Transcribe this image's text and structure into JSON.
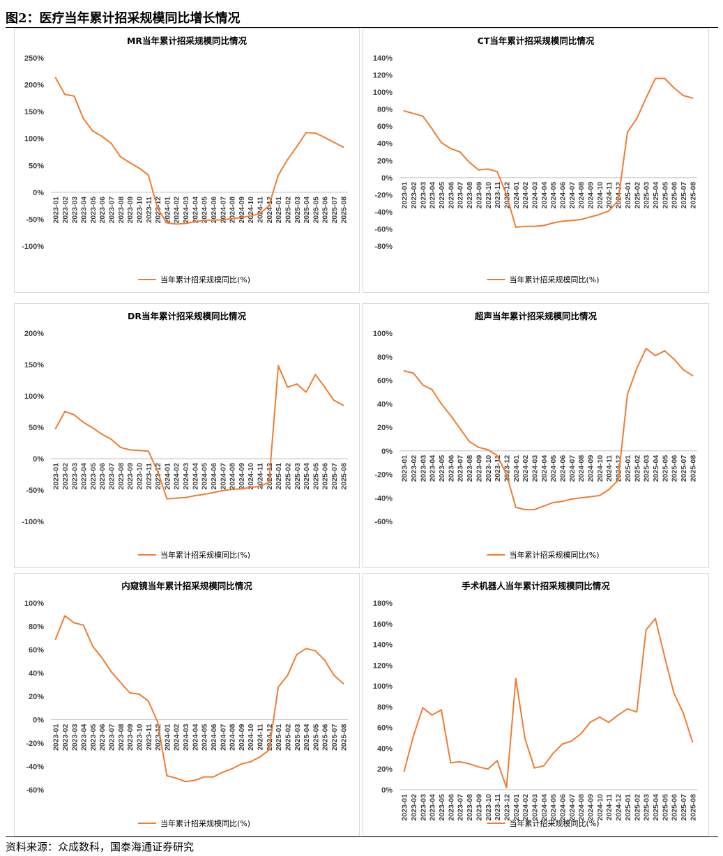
{
  "figure": {
    "title": "图2：医疗当年累计招采规模同比增长情况",
    "source": "资料来源：众成数科，国泰海通证券研究"
  },
  "colors": {
    "line": "#ED7D31",
    "axis_text": "#404040",
    "border": "#d9d9d9"
  },
  "chart_data": [
    {
      "type": "line",
      "title": "MR当年累计招采规模同比情况",
      "legend": "当年累计招采规模同比(%)",
      "legend_position": "bottom",
      "ylim": [
        -100,
        250
      ],
      "yticks": [
        -100,
        -50,
        0,
        50,
        100,
        150,
        200,
        250
      ],
      "ytick_labels": [
        "-100%",
        "-50%",
        "0%",
        "50%",
        "100%",
        "150%",
        "200%",
        "250%"
      ],
      "categories": [
        "2023-01",
        "2023-02",
        "2023-03",
        "2023-04",
        "2023-05",
        "2023-06",
        "2023-07",
        "2023-08",
        "2023-09",
        "2023-10",
        "2023-11",
        "2023-12",
        "2024-01",
        "2024-02",
        "2024-03",
        "2024-04",
        "2024-05",
        "2024-06",
        "2024-07",
        "2024-08",
        "2024-09",
        "2024-10",
        "2024-11",
        "2024-12",
        "2025-01",
        "2025-02",
        "2025-03",
        "2025-04",
        "2025-05",
        "2025-06",
        "2025-07",
        "2025-08"
      ],
      "tick_labels": [
        "2023-01",
        "2023-02",
        "2023-03",
        "2023-04",
        "2023-05",
        "2023-06",
        "2023-07",
        "2023-08",
        "2023-09",
        "2023-10",
        "2023-11",
        "2023-12",
        "2024-01",
        "2024-02",
        "2024-03",
        "2024-04",
        "2024-05",
        "2024-06",
        "2024-07",
        "2024-08",
        "2024-09",
        "2024-10",
        "2024-11",
        "2024-12",
        "2025-01",
        "2025-02",
        "2025-03",
        "2025-04",
        "2025-05",
        "2025-06",
        "2025-07",
        "2025-08"
      ],
      "values": [
        213,
        182,
        179,
        137,
        114,
        104,
        91,
        66,
        55,
        45,
        32,
        -30,
        -57,
        -59,
        -58,
        -55,
        -52,
        -52,
        -51,
        -49,
        -47,
        -44,
        -40,
        -25,
        32,
        61,
        85,
        111,
        110,
        102,
        93,
        84
      ]
    },
    {
      "type": "line",
      "title": "CT当年累计招采规模同比情况",
      "legend": "当年累计招采规模同比(%)",
      "legend_position": "bottom",
      "ylim": [
        -80,
        140
      ],
      "yticks": [
        -80,
        -60,
        -40,
        -20,
        0,
        20,
        40,
        60,
        80,
        100,
        120,
        140
      ],
      "ytick_labels": [
        "-80%",
        "-60%",
        "-40%",
        "-20%",
        "0%",
        "20%",
        "40%",
        "60%",
        "80%",
        "100%",
        "120%",
        "140%"
      ],
      "categories": [
        "2023-01",
        "2023-02",
        "2023-03",
        "2023-04",
        "2023-05",
        "2023-06",
        "2023-07",
        "2023-08",
        "2023-09",
        "2023-10",
        "2023-11",
        "2023-12",
        "2024-01",
        "2024-02",
        "2024-03",
        "2024-04",
        "2024-05",
        "2024-06",
        "2024-07",
        "2024-08",
        "2024-09",
        "2024-10",
        "2024-11",
        "2024-12",
        "2025-01",
        "2025-02",
        "2025-03",
        "2025-04",
        "2025-05",
        "2025-06",
        "2025-07",
        "2025-08"
      ],
      "tick_labels": [
        "2023-01",
        "2023-02",
        "2023-03",
        "2023-04",
        "2023-05",
        "2023-06",
        "2023-07",
        "2023-08",
        "2023-09",
        "2023-10",
        "2023-11",
        "2023-12",
        "2024-01",
        "2024-02",
        "2024-03",
        "2024-04",
        "2024-05",
        "2024-06",
        "2024-07",
        "2024-08",
        "2024-09",
        "2024-10",
        "2024-11",
        "2024-12",
        "2025-01",
        "2025-02",
        "2025-03",
        "2025-04",
        "2025-05",
        "2025-06",
        "2025-07",
        "2025-08"
      ],
      "values": [
        78,
        75,
        72,
        57,
        41,
        34,
        30,
        18,
        9,
        10,
        7,
        -20,
        -58,
        -57,
        -57,
        -56,
        -53,
        -51,
        -50,
        -49,
        -46,
        -43,
        -39,
        -27,
        53,
        69,
        93,
        116,
        116,
        105,
        96,
        93
      ]
    },
    {
      "type": "line",
      "title": "DR当年累计招采规模同比情况",
      "legend": "当年累计招采规模同比(%)",
      "legend_position": "bottom",
      "ylim": [
        -100,
        200
      ],
      "yticks": [
        -100,
        -50,
        0,
        50,
        100,
        150,
        200
      ],
      "ytick_labels": [
        "-100%",
        "-50%",
        "0%",
        "50%",
        "100%",
        "150%",
        "200%"
      ],
      "categories": [
        "2023-01",
        "2023-02",
        "2023-03",
        "2023-04",
        "2023-05",
        "2023-06",
        "2023-07",
        "2023-08",
        "2023-09",
        "2023-10",
        "2023-11",
        "2023-12",
        "2024-01",
        "2024-02",
        "2024-03",
        "2024-04",
        "2024-05",
        "2024-06",
        "2024-07",
        "2024-08",
        "2024-09",
        "2024-10",
        "2024-11",
        "2024-12",
        "2025-01",
        "2025-02",
        "2025-03",
        "2025-04",
        "2025-05",
        "2025-06",
        "2025-07",
        "2025-08"
      ],
      "tick_labels": [
        "2023-01",
        "2023-02",
        "2023-03",
        "2023-04",
        "2023-05",
        "2023-06",
        "2023-07",
        "2023-08",
        "2023-09",
        "2023-10",
        "2023-11",
        "2023-12",
        "2024-01",
        "2024-02",
        "2024-03",
        "2024-04",
        "2024-05",
        "2024-06",
        "2024-07",
        "2024-08",
        "2024-09",
        "2024-10",
        "2024-11",
        "2024-12",
        "2025-01",
        "2025-02",
        "2025-03",
        "2025-04",
        "2025-05",
        "2025-06",
        "2025-07",
        "2025-08"
      ],
      "values": [
        48,
        75,
        70,
        58,
        49,
        39,
        31,
        18,
        14,
        13,
        12,
        -20,
        -64,
        -63,
        -62,
        -59,
        -57,
        -54,
        -51,
        -49,
        -48,
        -46,
        -44,
        -38,
        148,
        114,
        119,
        106,
        134,
        114,
        93,
        85
      ]
    },
    {
      "type": "line",
      "title": "超声当年累计招采规模同比情况",
      "legend": "当年累计招采规模同比(%)",
      "legend_position": "bottom",
      "ylim": [
        -60,
        100
      ],
      "yticks": [
        -60,
        -40,
        -20,
        0,
        20,
        40,
        60,
        80,
        100
      ],
      "ytick_labels": [
        "-60%",
        "-40%",
        "-20%",
        "0%",
        "20%",
        "40%",
        "60%",
        "80%",
        "100%"
      ],
      "categories": [
        "2023-01",
        "2023-02",
        "2023-03",
        "2023-04",
        "2023-05",
        "2023-06",
        "2023-07",
        "2023-08",
        "2023-09",
        "2023-10",
        "2023-11",
        "2023-12",
        "2024-01",
        "2024-02",
        "2024-03",
        "2024-04",
        "2024-05",
        "2024-06",
        "2024-07",
        "2024-08",
        "2024-09",
        "2024-10",
        "2024-11",
        "2024-12",
        "2025-01",
        "2025-02",
        "2025-03",
        "2025-04",
        "2025-05",
        "2025-06",
        "2025-07",
        "2025-08"
      ],
      "tick_labels": [
        "2023-01",
        "2023-02",
        "2023-03",
        "2023-04",
        "2023-05",
        "2023-06",
        "2023-07",
        "2023-08",
        "2023-09",
        "2023-10",
        "2023-11",
        "2023-12",
        "2024-01",
        "2024-02",
        "2024-03",
        "2024-04",
        "2024-05",
        "2024-06",
        "2024-07",
        "2024-08",
        "2024-09",
        "2024-10",
        "2024-11",
        "2024-12",
        "2025-01",
        "2025-02",
        "2025-03",
        "2025-04",
        "2025-05",
        "2025-06",
        "2025-07",
        "2025-08"
      ],
      "values": [
        68,
        66,
        56,
        52,
        40,
        30,
        19,
        8,
        3,
        1,
        -4,
        -20,
        -48,
        -50,
        -50,
        -47,
        -44,
        -43,
        -41,
        -40,
        -39,
        -38,
        -33,
        -25,
        48,
        70,
        87,
        81,
        85,
        78,
        69,
        64
      ]
    },
    {
      "type": "line",
      "title": "内窥镜当年累计招采规模同比情况",
      "legend": "当年累计招采规模同比(%)",
      "legend_position": "bottom",
      "ylim": [
        -60,
        100
      ],
      "yticks": [
        -60,
        -40,
        -20,
        0,
        20,
        40,
        60,
        80,
        100
      ],
      "ytick_labels": [
        "-60%",
        "-40%",
        "-20%",
        "0%",
        "20%",
        "40%",
        "60%",
        "80%",
        "100%"
      ],
      "categories": [
        "2023-01",
        "2023-02",
        "2023-03",
        "2023-04",
        "2023-05",
        "2023-06",
        "2023-07",
        "2023-08",
        "2023-09",
        "2023-10",
        "2023-11",
        "2023-12",
        "2024-01",
        "2024-02",
        "2024-03",
        "2024-04",
        "2024-05",
        "2024-06",
        "2024-07",
        "2024-08",
        "2024-09",
        "2024-10",
        "2024-11",
        "2024-12",
        "2025-01",
        "2025-02",
        "2025-03",
        "2025-04",
        "2025-05",
        "2025-06",
        "2025-07",
        "2025-08"
      ],
      "tick_labels": [
        "2023-01",
        "2023-02",
        "2023-03",
        "2023-04",
        "2023-05",
        "2023-06",
        "2023-07",
        "2023-08",
        "2023-09",
        "2023-10",
        "2023-11",
        "2023-12",
        "2024-01",
        "2024-02",
        "2024-03",
        "2024-04",
        "2024-05",
        "2024-06",
        "2024-07",
        "2024-08",
        "2024-09",
        "2024-10",
        "2024-11",
        "2024-12",
        "2025-01",
        "2025-02",
        "2025-03",
        "2025-04",
        "2025-05",
        "2025-06",
        "2025-07",
        "2025-08"
      ],
      "values": [
        69,
        89,
        83,
        81,
        63,
        53,
        41,
        32,
        23,
        22,
        16,
        -2,
        -48,
        -50,
        -53,
        -52,
        -49,
        -49,
        -45,
        -42,
        -38,
        -36,
        -32,
        -26,
        28,
        38,
        56,
        61,
        59,
        51,
        38,
        31
      ]
    },
    {
      "type": "line",
      "title": "手术机器人当年累计招采规模同比情况",
      "legend": "当年累计招采规模同比(%)",
      "legend_position": "bottom",
      "ylim": [
        0,
        180
      ],
      "yticks": [
        0,
        20,
        40,
        60,
        80,
        100,
        120,
        140,
        160,
        180
      ],
      "ytick_labels": [
        "0%",
        "20%",
        "40%",
        "60%",
        "80%",
        "100%",
        "120%",
        "140%",
        "160%",
        "180%"
      ],
      "categories": [
        "2023-01",
        "2023-02",
        "2023-03",
        "2023-04",
        "2023-05",
        "2023-06",
        "2023-07",
        "2023-08",
        "2023-09",
        "2023-10",
        "2023-11",
        "2023-12",
        "2024-01",
        "2024-02",
        "2024-03",
        "2024-04",
        "2024-05",
        "2024-06",
        "2024-07",
        "2024-08",
        "2024-09",
        "2024-10",
        "2024-11",
        "2024-12",
        "2025-01",
        "2025-02",
        "2025-03",
        "2025-04",
        "2025-05",
        "2025-06",
        "2025-07",
        "2025-08"
      ],
      "tick_labels": [
        "2023-01",
        "2023-02",
        "2023-03",
        "2023-04",
        "2023-05",
        "2023-06",
        "2023-07",
        "2023-08",
        "2023-09",
        "2023-10",
        "2023-11",
        "2023-12",
        "2024-01",
        "2024-02",
        "2024-03",
        "2024-04",
        "2024-05",
        "2024-06",
        "2024-07",
        "2024-08",
        "2024-09",
        "2024-10",
        "2024-11",
        "2024-12",
        "2025-01",
        "2025-02",
        "2025-03",
        "2025-04",
        "2025-05",
        "2025-06",
        "2025-07",
        "2025-08"
      ],
      "values": [
        18,
        52,
        79,
        72,
        77,
        26,
        27,
        25,
        22,
        20,
        28,
        2,
        107,
        49,
        21,
        23,
        35,
        44,
        47,
        54,
        65,
        70,
        65,
        72,
        78,
        75,
        154,
        165,
        128,
        93,
        74,
        46
      ]
    }
  ]
}
